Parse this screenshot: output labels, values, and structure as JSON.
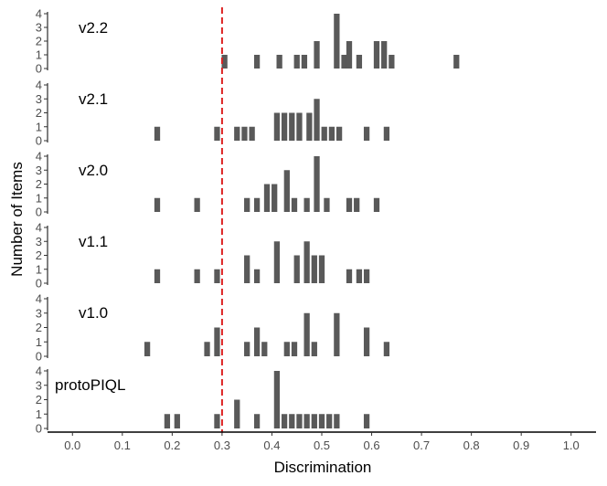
{
  "chart_data": {
    "type": "bar",
    "title": "",
    "xlabel": "Discrimination",
    "ylabel": "Number of Items",
    "xlim": [
      -0.05,
      1.05
    ],
    "ylim": [
      0,
      4
    ],
    "x_ticks": [
      "0.0",
      "0.1",
      "0.2",
      "0.3",
      "0.4",
      "0.5",
      "0.6",
      "0.7",
      "0.8",
      "0.9",
      "1.0"
    ],
    "y_ticks": [
      "0",
      "1",
      "2",
      "3",
      "4"
    ],
    "bin_width": 0.0115,
    "reference_line": {
      "x": 0.3,
      "color": "#dd2222",
      "style": "dashed"
    },
    "bar_color": "#595959",
    "panels": [
      {
        "name": "v2.2",
        "bars": [
          {
            "x": 0.305,
            "count": 1
          },
          {
            "x": 0.37,
            "count": 1
          },
          {
            "x": 0.415,
            "count": 1
          },
          {
            "x": 0.45,
            "count": 1
          },
          {
            "x": 0.465,
            "count": 1
          },
          {
            "x": 0.49,
            "count": 2
          },
          {
            "x": 0.53,
            "count": 4
          },
          {
            "x": 0.545,
            "count": 1
          },
          {
            "x": 0.555,
            "count": 2
          },
          {
            "x": 0.575,
            "count": 1
          },
          {
            "x": 0.61,
            "count": 2
          },
          {
            "x": 0.625,
            "count": 2
          },
          {
            "x": 0.64,
            "count": 1
          },
          {
            "x": 0.77,
            "count": 1
          }
        ]
      },
      {
        "name": "v2.1",
        "bars": [
          {
            "x": 0.17,
            "count": 1
          },
          {
            "x": 0.29,
            "count": 1
          },
          {
            "x": 0.33,
            "count": 1
          },
          {
            "x": 0.345,
            "count": 1
          },
          {
            "x": 0.36,
            "count": 1
          },
          {
            "x": 0.41,
            "count": 2
          },
          {
            "x": 0.425,
            "count": 2
          },
          {
            "x": 0.44,
            "count": 2
          },
          {
            "x": 0.455,
            "count": 2
          },
          {
            "x": 0.475,
            "count": 2
          },
          {
            "x": 0.49,
            "count": 3
          },
          {
            "x": 0.505,
            "count": 1
          },
          {
            "x": 0.52,
            "count": 1
          },
          {
            "x": 0.535,
            "count": 1
          },
          {
            "x": 0.59,
            "count": 1
          },
          {
            "x": 0.63,
            "count": 1
          }
        ]
      },
      {
        "name": "v2.0",
        "bars": [
          {
            "x": 0.17,
            "count": 1
          },
          {
            "x": 0.25,
            "count": 1
          },
          {
            "x": 0.35,
            "count": 1
          },
          {
            "x": 0.37,
            "count": 1
          },
          {
            "x": 0.39,
            "count": 2
          },
          {
            "x": 0.405,
            "count": 2
          },
          {
            "x": 0.43,
            "count": 3
          },
          {
            "x": 0.445,
            "count": 1
          },
          {
            "x": 0.47,
            "count": 1
          },
          {
            "x": 0.49,
            "count": 4
          },
          {
            "x": 0.51,
            "count": 1
          },
          {
            "x": 0.555,
            "count": 1
          },
          {
            "x": 0.57,
            "count": 1
          },
          {
            "x": 0.61,
            "count": 1
          }
        ]
      },
      {
        "name": "v1.1",
        "bars": [
          {
            "x": 0.17,
            "count": 1
          },
          {
            "x": 0.25,
            "count": 1
          },
          {
            "x": 0.29,
            "count": 1
          },
          {
            "x": 0.35,
            "count": 2
          },
          {
            "x": 0.37,
            "count": 1
          },
          {
            "x": 0.41,
            "count": 3
          },
          {
            "x": 0.45,
            "count": 2
          },
          {
            "x": 0.47,
            "count": 3
          },
          {
            "x": 0.485,
            "count": 2
          },
          {
            "x": 0.5,
            "count": 2
          },
          {
            "x": 0.555,
            "count": 1
          },
          {
            "x": 0.575,
            "count": 1
          },
          {
            "x": 0.59,
            "count": 1
          }
        ]
      },
      {
        "name": "v1.0",
        "bars": [
          {
            "x": 0.15,
            "count": 1
          },
          {
            "x": 0.27,
            "count": 1
          },
          {
            "x": 0.29,
            "count": 2
          },
          {
            "x": 0.35,
            "count": 1
          },
          {
            "x": 0.37,
            "count": 2
          },
          {
            "x": 0.385,
            "count": 1
          },
          {
            "x": 0.43,
            "count": 1
          },
          {
            "x": 0.445,
            "count": 1
          },
          {
            "x": 0.47,
            "count": 3
          },
          {
            "x": 0.485,
            "count": 1
          },
          {
            "x": 0.53,
            "count": 3
          },
          {
            "x": 0.59,
            "count": 2
          },
          {
            "x": 0.63,
            "count": 1
          }
        ]
      },
      {
        "name": "protoPIQL",
        "bars": [
          {
            "x": 0.19,
            "count": 1
          },
          {
            "x": 0.21,
            "count": 1
          },
          {
            "x": 0.29,
            "count": 1
          },
          {
            "x": 0.33,
            "count": 2
          },
          {
            "x": 0.37,
            "count": 1
          },
          {
            "x": 0.41,
            "count": 4
          },
          {
            "x": 0.425,
            "count": 1
          },
          {
            "x": 0.44,
            "count": 1
          },
          {
            "x": 0.455,
            "count": 1
          },
          {
            "x": 0.47,
            "count": 1
          },
          {
            "x": 0.485,
            "count": 1
          },
          {
            "x": 0.5,
            "count": 1
          },
          {
            "x": 0.515,
            "count": 1
          },
          {
            "x": 0.53,
            "count": 1
          },
          {
            "x": 0.59,
            "count": 1
          }
        ]
      }
    ]
  }
}
